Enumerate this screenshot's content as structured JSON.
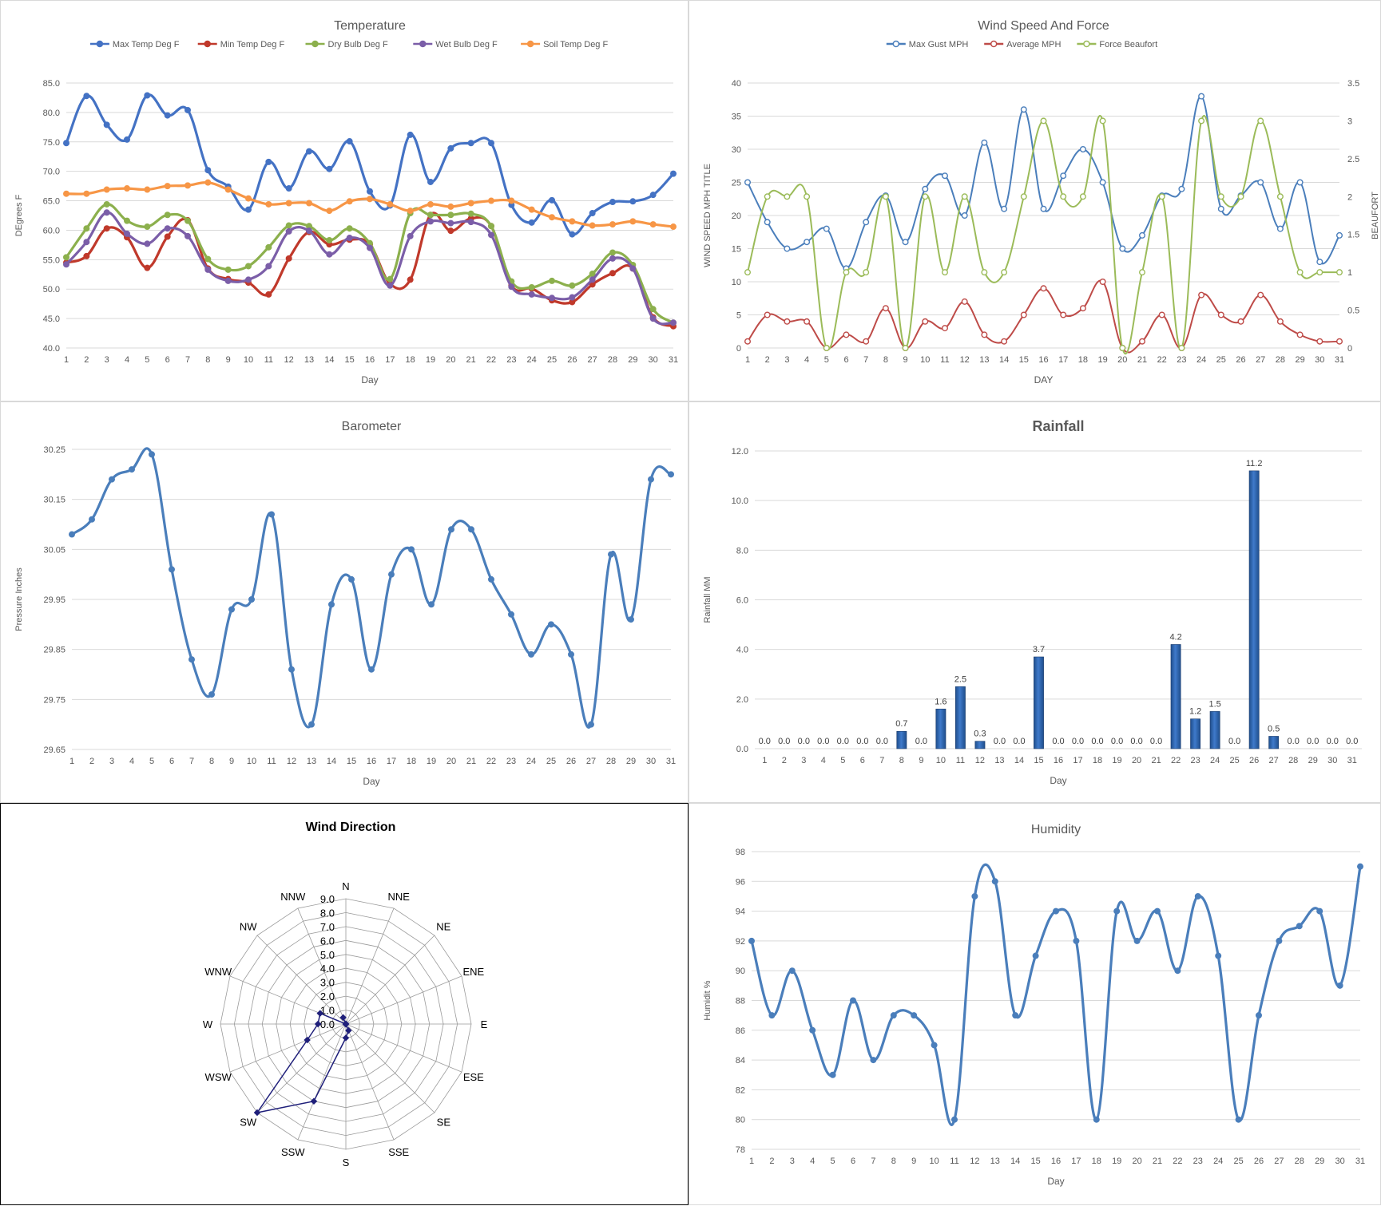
{
  "chart_data": [
    {
      "id": "temp",
      "type": "line",
      "title": "Temperature",
      "xlabel": "Day",
      "ylabel": "DEgrees F",
      "x": [
        1,
        2,
        3,
        4,
        5,
        6,
        7,
        8,
        9,
        10,
        11,
        12,
        13,
        14,
        15,
        16,
        17,
        18,
        19,
        20,
        21,
        22,
        23,
        24,
        25,
        26,
        27,
        28,
        29,
        30,
        31
      ],
      "ylim": [
        40,
        85
      ],
      "yticks": [
        "40.0",
        "45.0",
        "50.0",
        "55.0",
        "60.0",
        "65.0",
        "70.0",
        "75.0",
        "80.0",
        "85.0"
      ],
      "legend": "top",
      "grid": true,
      "series": [
        {
          "name": "Max Temp Deg F",
          "color": "#4472C4",
          "values": [
            74.8,
            82.8,
            77.9,
            75.4,
            82.9,
            79.5,
            80.4,
            70.2,
            67.4,
            63.5,
            71.6,
            67.1,
            73.4,
            70.4,
            75.1,
            66.6,
            64.2,
            76.2,
            68.2,
            73.9,
            74.8,
            74.8,
            64.3,
            61.3,
            65.1,
            59.3,
            62.9,
            64.8,
            64.9,
            66,
            69.6
          ]
        },
        {
          "name": "Min Temp Deg F",
          "color": "#C0392B",
          "values": [
            54.5,
            55.6,
            60.3,
            58.8,
            53.6,
            58.9,
            61.7,
            53.5,
            51.7,
            51.1,
            49.1,
            55.2,
            59.7,
            57.6,
            58.4,
            57.6,
            50.9,
            51.6,
            62.6,
            59.9,
            62,
            60.7,
            50.6,
            50.1,
            48.1,
            47.8,
            50.8,
            52.7,
            53.5,
            45.2,
            43.7
          ]
        },
        {
          "name": "Dry Bulb Deg F",
          "color": "#8CB04D",
          "values": [
            55.4,
            60.3,
            64.4,
            61.6,
            60.6,
            62.6,
            61.6,
            55.1,
            53.3,
            53.9,
            57.1,
            60.8,
            60.7,
            58.3,
            60.3,
            57.8,
            51.7,
            62.9,
            62.6,
            62.6,
            62.8,
            60.7,
            51.3,
            50.3,
            51.4,
            50.6,
            52.6,
            56.2,
            54.1,
            46.6,
            44.3
          ]
        },
        {
          "name": "Wet Bulb Deg F",
          "color": "#7B5EA8",
          "values": [
            54.2,
            58,
            63,
            59.4,
            57.7,
            60.3,
            59,
            53.3,
            51.4,
            51.6,
            53.9,
            59.8,
            59.9,
            55.9,
            58.7,
            57,
            50.6,
            59,
            61.5,
            61.2,
            61.4,
            59.2,
            50.4,
            49.1,
            48.5,
            48.6,
            51.6,
            55.2,
            53.5,
            45,
            44.3
          ]
        },
        {
          "name": "Soil Temp Deg F",
          "color": "#F79646",
          "values": [
            66.2,
            66.2,
            66.9,
            67.1,
            66.9,
            67.5,
            67.6,
            68.1,
            66.9,
            65.4,
            64.4,
            64.6,
            64.6,
            63.3,
            64.9,
            65.3,
            64.4,
            63.3,
            64.4,
            64,
            64.6,
            65,
            65,
            63.5,
            62.2,
            61.5,
            60.8,
            61,
            61.5,
            61,
            60.6
          ]
        }
      ]
    },
    {
      "id": "wind",
      "type": "line",
      "title": "Wind Speed And Force",
      "xlabel": "DAY",
      "ylabel": "WIND SPEED MPH TITLE",
      "y2label": "BEAUFORT",
      "x": [
        1,
        2,
        3,
        4,
        5,
        6,
        7,
        8,
        9,
        10,
        11,
        12,
        13,
        14,
        15,
        16,
        17,
        18,
        19,
        20,
        21,
        22,
        23,
        24,
        25,
        26,
        27,
        28,
        29,
        30,
        31
      ],
      "ylim": [
        0,
        40
      ],
      "y2lim": [
        0,
        3.5
      ],
      "yticks": [
        "0",
        "5",
        "10",
        "15",
        "20",
        "25",
        "30",
        "35",
        "40"
      ],
      "y2ticks": [
        "0",
        "0.5",
        "1",
        "1.5",
        "2",
        "2.5",
        "3",
        "3.5"
      ],
      "legend": "top",
      "grid": true,
      "series": [
        {
          "name": "Max Gust MPH",
          "color": "#4A7EBB",
          "axis": "left",
          "values": [
            25,
            19,
            15,
            16,
            18,
            12,
            19,
            23,
            16,
            24,
            26,
            20,
            31,
            21,
            36,
            21,
            26,
            30,
            25,
            15,
            17,
            23,
            24,
            38,
            21,
            23,
            25,
            18,
            25,
            13,
            17
          ]
        },
        {
          "name": "Average MPH",
          "color": "#BE4B48",
          "axis": "left",
          "values": [
            1,
            5,
            4,
            4,
            0,
            2,
            1,
            6,
            0,
            4,
            3,
            7,
            2,
            1,
            5,
            9,
            5,
            6,
            10,
            0,
            1,
            5,
            0,
            8,
            5,
            4,
            8,
            4,
            2,
            1,
            1
          ]
        },
        {
          "name": "Force Beaufort",
          "color": "#9BBB59",
          "axis": "right",
          "values": [
            1,
            2,
            2,
            2,
            0,
            1,
            1,
            2,
            0,
            2,
            1,
            2,
            1,
            1,
            2,
            3,
            2,
            2,
            3,
            0,
            1,
            2,
            0,
            3,
            2,
            2,
            3,
            2,
            1,
            1,
            1
          ]
        }
      ]
    },
    {
      "id": "baro",
      "type": "line",
      "title": "Barometer",
      "xlabel": "Day",
      "ylabel": "Pressure Inches",
      "x": [
        1,
        2,
        3,
        4,
        5,
        6,
        7,
        8,
        9,
        10,
        11,
        12,
        13,
        14,
        15,
        16,
        17,
        18,
        19,
        20,
        21,
        22,
        23,
        24,
        25,
        26,
        27,
        28,
        29,
        30,
        31
      ],
      "ylim": [
        29.65,
        30.25
      ],
      "yticks": [
        "29.65",
        "29.75",
        "29.85",
        "29.95",
        "30.05",
        "30.15",
        "30.25"
      ],
      "grid": true,
      "series": [
        {
          "name": "",
          "color": "#4A7EBB",
          "values": [
            30.08,
            30.11,
            30.19,
            30.21,
            30.24,
            30.01,
            29.83,
            29.76,
            29.93,
            29.95,
            30.12,
            29.81,
            29.7,
            29.94,
            29.99,
            29.81,
            30,
            30.05,
            29.94,
            30.09,
            30.09,
            29.99,
            29.92,
            29.84,
            29.9,
            29.84,
            29.7,
            30.04,
            29.91,
            30.19,
            30.2
          ]
        }
      ]
    },
    {
      "id": "rain",
      "type": "bar",
      "title": "Rainfall",
      "xlabel": "Day",
      "ylabel": "Rainfall MM",
      "categories": [
        "1",
        "2",
        "3",
        "4",
        "5",
        "6",
        "7",
        "8",
        "9",
        "10",
        "11",
        "12",
        "13",
        "14",
        "15",
        "16",
        "17",
        "18",
        "19",
        "20",
        "21",
        "22",
        "23",
        "24",
        "25",
        "26",
        "27",
        "28",
        "29",
        "30",
        "31"
      ],
      "values": [
        0,
        0,
        0,
        0,
        0,
        0,
        0,
        0.7,
        0,
        1.6,
        2.5,
        0.3,
        0,
        0,
        3.7,
        0,
        0,
        0,
        0,
        0,
        0,
        4.2,
        1.2,
        1.5,
        0,
        11.2,
        0.5,
        0,
        0,
        0,
        0
      ],
      "labels": [
        "0.0",
        "0.0",
        "0.0",
        "0.0",
        "0.0",
        "0.0",
        "0.0",
        "0.7",
        "0.0",
        "1.6",
        "2.5",
        "0.3",
        "0.0",
        "0.0",
        "3.7",
        "0.0",
        "0.0",
        "0.0",
        "0.0",
        "0.0",
        "0.0",
        "4.2",
        "1.2",
        "1.5",
        "0.0",
        "11.2",
        "0.5",
        "0.0",
        "0.0",
        "0.0",
        "0.0"
      ],
      "ylim": [
        0,
        12
      ],
      "yticks": [
        "0.0",
        "2.0",
        "4.0",
        "6.0",
        "8.0",
        "10.0",
        "12.0"
      ],
      "color": "#3F7ACB",
      "grid": true
    },
    {
      "id": "dir",
      "type": "radar",
      "title": "Wind Direction",
      "categories": [
        "N",
        "NNE",
        "NE",
        "ENE",
        "E",
        "ESE",
        "SE",
        "SSE",
        "S",
        "SSW",
        "SW",
        "WSW",
        "W",
        "WNW",
        "NW",
        "NNW"
      ],
      "values": [
        0,
        0,
        0,
        0,
        0,
        0,
        0,
        0.5,
        1,
        6,
        9,
        3,
        2,
        2,
        0,
        0.5
      ],
      "rmax": 9,
      "rticks": [
        "0.0",
        "1.0",
        "2.0",
        "3.0",
        "4.0",
        "5.0",
        "6.0",
        "7.0",
        "8.0",
        "9.0"
      ],
      "color": "#1F1F7A",
      "grid": true
    },
    {
      "id": "hum",
      "type": "line",
      "title": "Humidity",
      "xlabel": "Day",
      "ylabel": "Humidit %",
      "x": [
        1,
        2,
        3,
        4,
        5,
        6,
        7,
        8,
        9,
        10,
        11,
        12,
        13,
        14,
        15,
        16,
        17,
        18,
        19,
        20,
        21,
        22,
        23,
        24,
        25,
        26,
        27,
        28,
        29,
        30,
        31
      ],
      "ylim": [
        78,
        98
      ],
      "yticks": [
        "78",
        "80",
        "82",
        "84",
        "86",
        "88",
        "90",
        "92",
        "94",
        "96",
        "98"
      ],
      "grid": true,
      "series": [
        {
          "name": "",
          "color": "#4A7EBB",
          "values": [
            92,
            87,
            90,
            86,
            83,
            88,
            84,
            87,
            87,
            85,
            80,
            95,
            96,
            87,
            91,
            94,
            92,
            80,
            94,
            92,
            94,
            90,
            95,
            91,
            80,
            87,
            92,
            93,
            94,
            89,
            97
          ]
        }
      ]
    }
  ]
}
